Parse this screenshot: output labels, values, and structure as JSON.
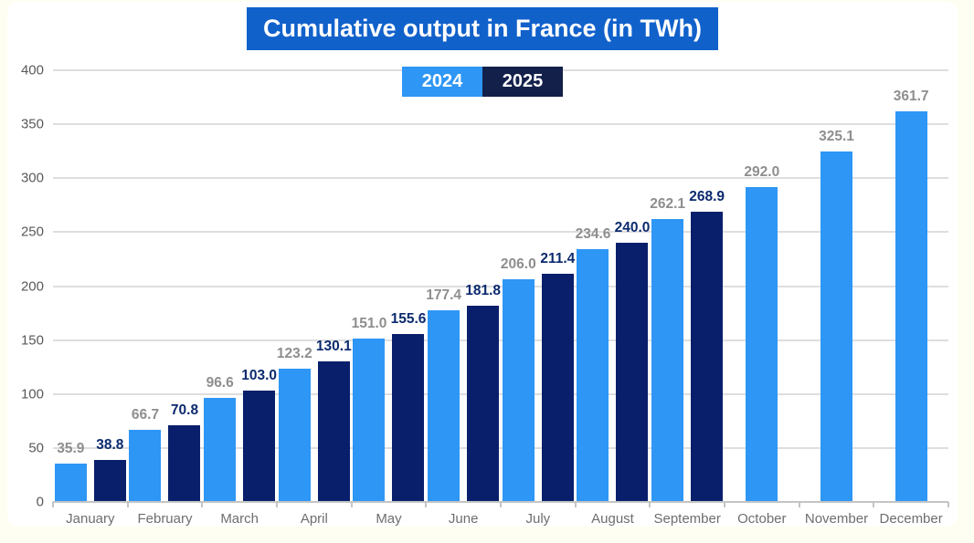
{
  "page": {
    "background_color": "#FFFEF2",
    "card_background_color": "#FFFFFF"
  },
  "title": {
    "text": "Cumulative output in France (in TWh)",
    "background_color": "#1161CB",
    "text_color": "#FFFFFF"
  },
  "legend": {
    "position": "top-center",
    "items": [
      {
        "label": "2024",
        "swatch_color": "#2E96F5"
      },
      {
        "label": "2025",
        "swatch_color": "#13204A"
      }
    ]
  },
  "chart_data": {
    "type": "bar",
    "title": "Cumulative output in France (in TWh)",
    "xlabel": "",
    "ylabel": "",
    "ylim": [
      0,
      400
    ],
    "yticks": [
      0,
      50,
      100,
      150,
      200,
      250,
      300,
      350,
      400
    ],
    "grid": true,
    "legend_position": "top-center",
    "categories": [
      "January",
      "February",
      "March",
      "April",
      "May",
      "June",
      "July",
      "August",
      "September",
      "October",
      "November",
      "December"
    ],
    "series": [
      {
        "name": "2024",
        "bar_color": "#2E96F5",
        "label_color": "#8E8E8E",
        "values": [
          35.9,
          66.7,
          96.6,
          123.2,
          151.0,
          177.4,
          206.0,
          234.6,
          262.1,
          292.0,
          325.1,
          361.7
        ],
        "value_labels": [
          "35.9",
          "66.7",
          "96.6",
          "123.2",
          "151.0",
          "177.4",
          "206.0",
          "234.6",
          "262.1",
          "292.0",
          "325.1",
          "361.7"
        ]
      },
      {
        "name": "2025",
        "bar_color": "#0A1F6B",
        "label_color": "#0B2A6E",
        "values": [
          38.8,
          70.8,
          103.0,
          130.1,
          155.6,
          181.8,
          211.4,
          240.0,
          268.9,
          null,
          null,
          null
        ],
        "value_labels": [
          "38.8",
          "70.8",
          "103.0",
          "130.1",
          "155.6",
          "181.8",
          "211.4",
          "240.0",
          "268.9",
          null,
          null,
          null
        ]
      }
    ]
  }
}
